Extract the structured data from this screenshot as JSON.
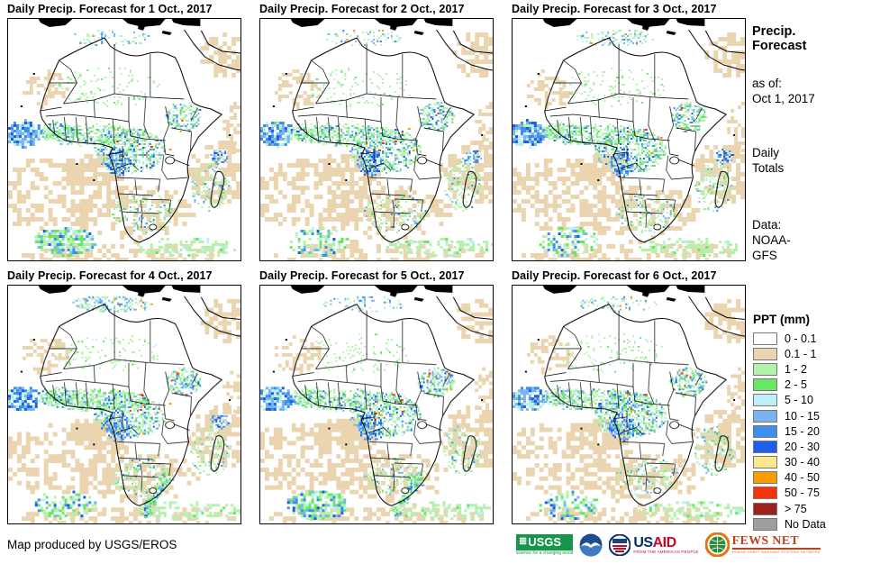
{
  "panels": [
    {
      "title": "Daily Precip. Forecast for 1 Oct., 2017"
    },
    {
      "title": "Daily Precip. Forecast for 2 Oct., 2017"
    },
    {
      "title": "Daily Precip. Forecast for 3 Oct., 2017"
    },
    {
      "title": "Daily Precip. Forecast for 4 Oct., 2017"
    },
    {
      "title": "Daily Precip. Forecast for 5 Oct., 2017"
    },
    {
      "title": "Daily Precip. Forecast for 6 Oct., 2017"
    }
  ],
  "sidebar": {
    "title_line1": "Precip.",
    "title_line2": "Forecast",
    "asof_label": "as of:",
    "asof_value": "Oct 1, 2017",
    "totals_line1": "Daily",
    "totals_line2": "Totals",
    "data_label": "Data:",
    "data_line1": "NOAA-",
    "data_line2": "GFS"
  },
  "legend": {
    "title": "PPT (mm)",
    "items": [
      {
        "label": "0 - 0.1",
        "color": "#FFFFFF"
      },
      {
        "label": "0.1 - 1",
        "color": "#EBD5B0"
      },
      {
        "label": "1 - 2",
        "color": "#B2F2AA"
      },
      {
        "label": "2 - 5",
        "color": "#66E866"
      },
      {
        "label": "5 - 10",
        "color": "#BDEFF8"
      },
      {
        "label": "10 - 15",
        "color": "#7AB4F0"
      },
      {
        "label": "15 - 20",
        "color": "#3E8EEE"
      },
      {
        "label": "20 - 30",
        "color": "#1D5DE8"
      },
      {
        "label": "30 - 40",
        "color": "#FAE88E"
      },
      {
        "label": "40 - 50",
        "color": "#F89E00"
      },
      {
        "label": "50 - 75",
        "color": "#F83208"
      },
      {
        "label": "> 75",
        "color": "#9E221C"
      },
      {
        "label": "No Data",
        "color": "#9E9E9E"
      }
    ]
  },
  "footer": {
    "credit": "Map produced by USGS/EROS",
    "logos": {
      "usgs": {
        "name": "USGS",
        "tagline": "science for a changing world"
      },
      "noaa": {
        "name": "NOAA"
      },
      "usaid": {
        "name": "USAID",
        "tagline": "FROM THE AMERICAN PEOPLE"
      },
      "fewsnet": {
        "name": "FEWS NET",
        "tagline": "FAMINE EARLY WARNING SYSTEMS NETWORK"
      }
    }
  }
}
